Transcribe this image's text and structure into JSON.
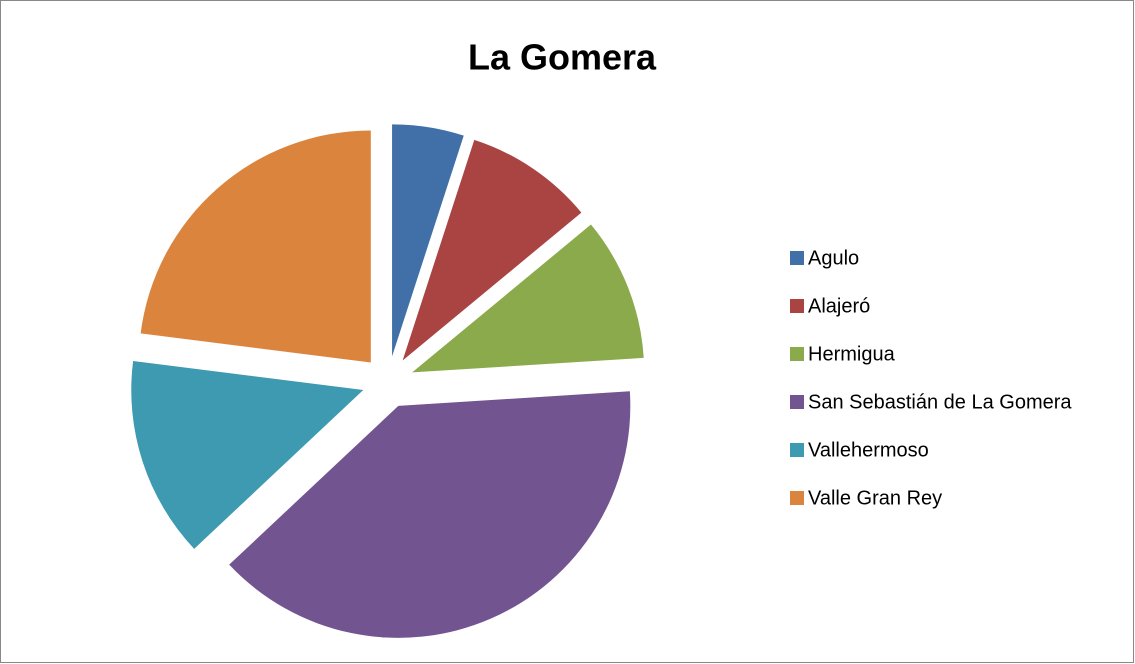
{
  "chart_data": {
    "type": "pie",
    "title": "La Gomera",
    "categories": [
      "Agulo",
      "Alajeró",
      "Hermigua",
      "San Sebastián de La Gomera",
      "Vallehermoso",
      "Valle Gran Rey"
    ],
    "values": [
      5,
      9,
      10,
      39,
      14,
      23
    ],
    "colors": [
      "#4170a8",
      "#a94442",
      "#8aaa4b",
      "#725590",
      "#3e9ab0",
      "#db843d"
    ],
    "legend": "right"
  }
}
